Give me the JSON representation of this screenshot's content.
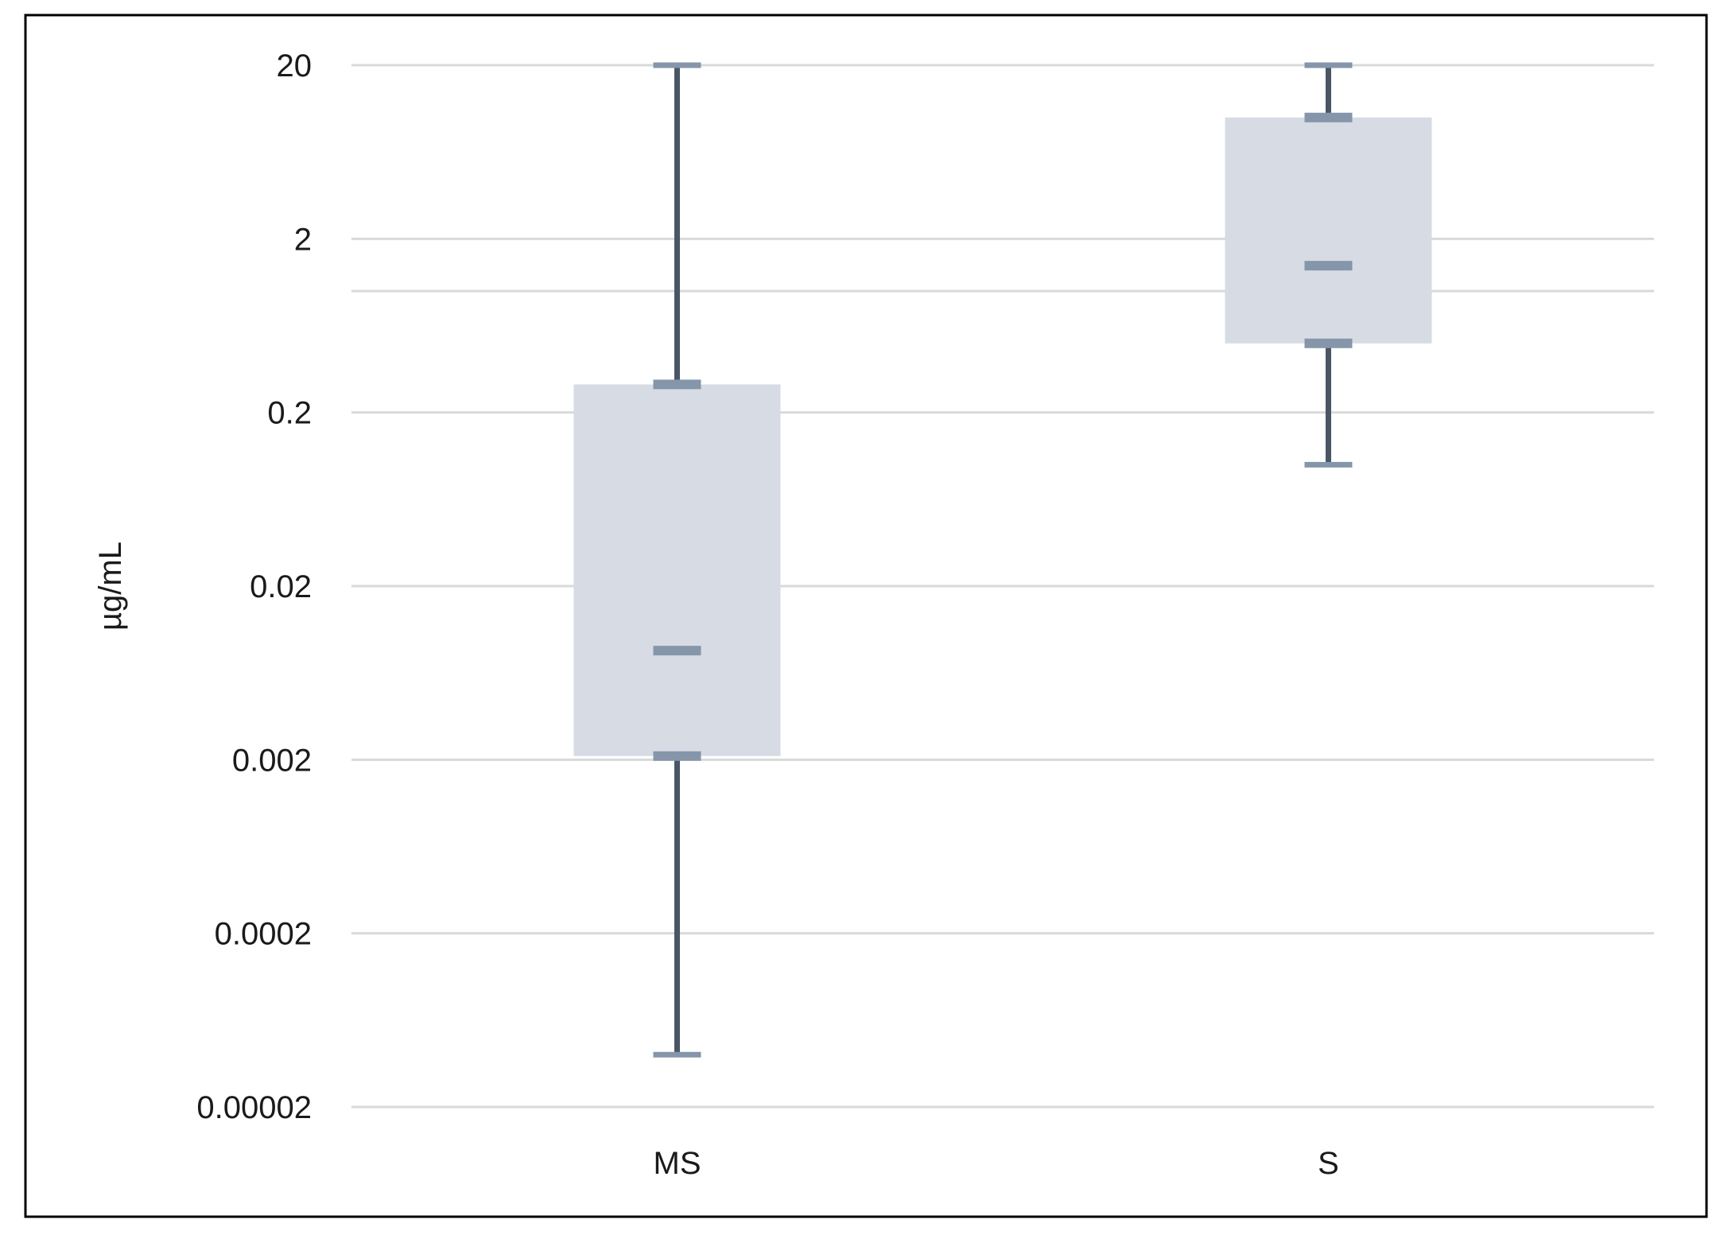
{
  "chart_data": {
    "type": "box",
    "title": "",
    "xlabel": "",
    "ylabel": "µg/mL",
    "y_scale": "log",
    "y_tick_values": [
      2e-05,
      0.0002,
      0.002,
      0.02,
      0.2,
      2,
      20
    ],
    "y_tick_labels": [
      "0.00002",
      "0.0002",
      "0.002",
      "0.02",
      "0.2",
      "2",
      "20"
    ],
    "ylim": [
      2e-05,
      20
    ],
    "minor_gridlines": [
      1
    ],
    "grid": true,
    "legend": "none",
    "categories": [
      "MS",
      "S"
    ],
    "boxes": [
      {
        "category": "MS",
        "min": 4e-05,
        "q1": 0.0021,
        "median": 0.0085,
        "q3": 0.29,
        "max": 20
      },
      {
        "category": "S",
        "min": 0.1,
        "q1": 0.5,
        "median": 1.4,
        "q3": 10,
        "max": 20
      }
    ],
    "colors": {
      "box_fill": "#d6dbe4",
      "whisker": "#4a5566",
      "cap": "#8596aa",
      "gridline": "#d9d9d9",
      "frame": "#000000"
    }
  }
}
